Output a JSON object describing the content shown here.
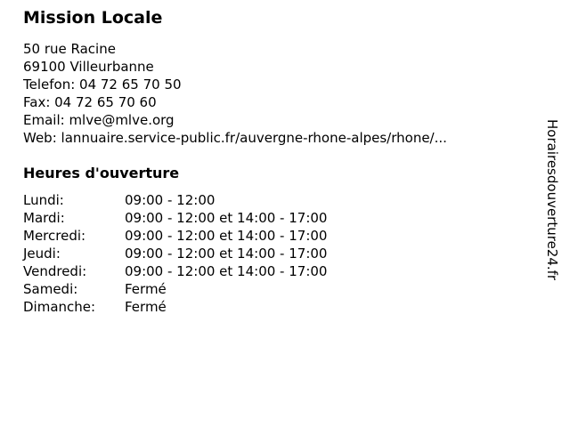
{
  "colors": {
    "text": "#000000",
    "background": "#ffffff"
  },
  "header": {
    "title": "Mission Locale"
  },
  "contact": {
    "lines": [
      "50 rue Racine",
      "69100 Villeurbanne",
      "Telefon: 04 72 65 70 50",
      "Fax: 04 72 65 70 60",
      "Email: mlve@mlve.org",
      "Web: lannuaire.service-public.fr/auvergne-rhone-alpes/rhone/..."
    ]
  },
  "hours": {
    "heading": "Heures d'ouverture",
    "rows": [
      {
        "day": "Lundi:",
        "hours": "09:00 - 12:00"
      },
      {
        "day": "Mardi:",
        "hours": "09:00 - 12:00 et 14:00 - 17:00"
      },
      {
        "day": "Mercredi:",
        "hours": "09:00 - 12:00 et 14:00 - 17:00"
      },
      {
        "day": "Jeudi:",
        "hours": "09:00 - 12:00 et 14:00 - 17:00"
      },
      {
        "day": "Vendredi:",
        "hours": "09:00 - 12:00 et 14:00 - 17:00"
      },
      {
        "day": "Samedi:",
        "hours": "Fermé"
      },
      {
        "day": "Dimanche:",
        "hours": "Fermé"
      }
    ]
  },
  "watermark": {
    "label": "Horairesdouverture24.fr"
  }
}
